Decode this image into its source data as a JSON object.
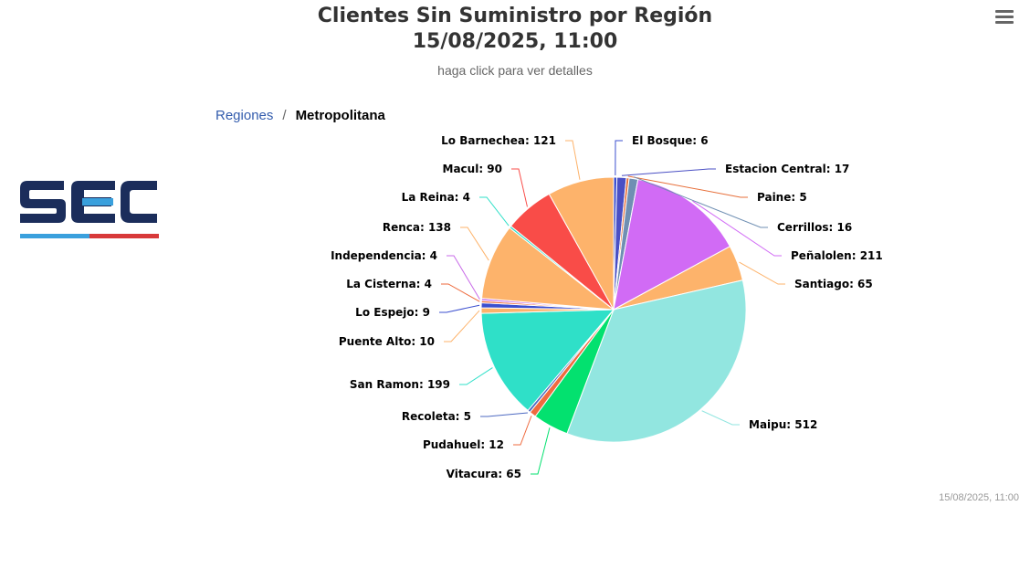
{
  "header": {
    "title_line1": "Clientes Sin Suministro por Región",
    "title_line2": "15/08/2025, 11:00",
    "subtitle": "haga click para ver detalles"
  },
  "breadcrumb": {
    "root": "Regiones",
    "separator": "/",
    "current": "Metropolitana"
  },
  "logo": {
    "text": "SEC",
    "colors": [
      "#1b2d5b",
      "#3aa0dd",
      "#d8393a"
    ]
  },
  "menu": {
    "icon": "hamburger-icon"
  },
  "timestamp": "15/08/2025, 11:00",
  "chart_data": {
    "type": "pie",
    "title": "Clientes Sin Suministro por Región",
    "slices": [
      {
        "name": "El Bosque",
        "value": 6,
        "color": "#3b4fcf"
      },
      {
        "name": "Estacion Central",
        "value": 17,
        "color": "#4a4fc4"
      },
      {
        "name": "Paine",
        "value": 5,
        "color": "#e76f3a"
      },
      {
        "name": "Cerrillos",
        "value": 16,
        "color": "#6f8fb3"
      },
      {
        "name": "Peñalolen",
        "value": 211,
        "color": "#d16bf5"
      },
      {
        "name": "Santiago",
        "value": 65,
        "color": "#fdb36b"
      },
      {
        "name": "Maipu",
        "value": 512,
        "color": "#92e6e0"
      },
      {
        "name": "Vitacura",
        "value": 65,
        "color": "#03e16f"
      },
      {
        "name": "Pudahuel",
        "value": 12,
        "color": "#ef6b3f"
      },
      {
        "name": "Recoleta",
        "value": 5,
        "color": "#4e6ac2"
      },
      {
        "name": "San Ramon",
        "value": 199,
        "color": "#2fe0c8"
      },
      {
        "name": "Puente Alto",
        "value": 10,
        "color": "#fdb36b"
      },
      {
        "name": "Lo Espejo",
        "value": 9,
        "color": "#3b4fcf"
      },
      {
        "name": "La Cisterna",
        "value": 4,
        "color": "#ee6a3c"
      },
      {
        "name": "Independencia",
        "value": 4,
        "color": "#c86be8"
      },
      {
        "name": "Renca",
        "value": 138,
        "color": "#fdb36b"
      },
      {
        "name": "La Reina",
        "value": 4,
        "color": "#2fe0c8"
      },
      {
        "name": "Macul",
        "value": 90,
        "color": "#f94c48"
      },
      {
        "name": "Lo Barnechea",
        "value": 121,
        "color": "#fdb36b"
      }
    ],
    "labels": [
      "El Bosque: 6",
      "Estacion Central: 17",
      "Paine: 5",
      "Cerrillos: 16",
      "Peñalolen: 211",
      "Santiago: 65",
      "Maipu: 512",
      "Vitacura: 65",
      "Pudahuel: 12",
      "Recoleta: 5",
      "San Ramon: 199",
      "Puente Alto: 10",
      "Lo Espejo: 9",
      "La Cisterna: 4",
      "Independencia: 4",
      "Renca: 138",
      "La Reina: 4",
      "Macul: 90",
      "Lo Barnechea: 121"
    ]
  }
}
